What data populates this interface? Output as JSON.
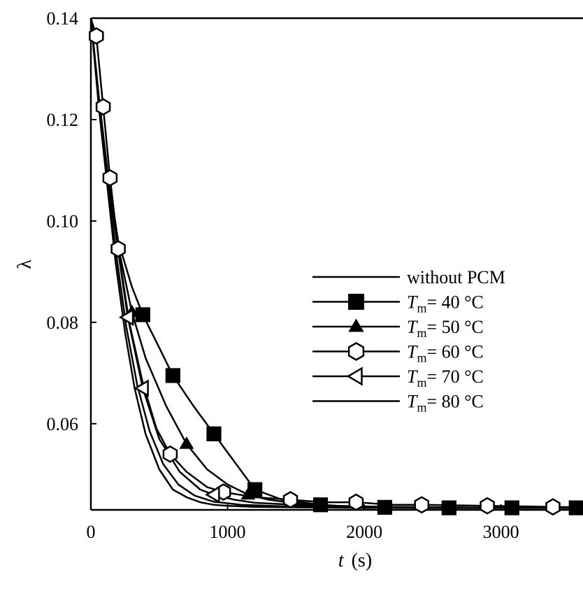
{
  "chart_data": {
    "type": "line",
    "xlabel_var": "t",
    "xlabel_unit": "(s)",
    "ylabel": "λ",
    "xlim": [
      0,
      3600
    ],
    "ylim": [
      0.043,
      0.14
    ],
    "x_ticks": [
      0,
      1000,
      2000,
      3000
    ],
    "x_tick_labels": [
      "0",
      "1000",
      "2000",
      "3000"
    ],
    "y_ticks": [
      0.06,
      0.08,
      0.1,
      0.12,
      0.14
    ],
    "y_tick_labels": [
      "0.06",
      "0.08",
      "0.10",
      "0.12",
      "0.14"
    ],
    "grid": false,
    "legend_position": "center-right",
    "series": [
      {
        "name": "without PCM",
        "marker": "none",
        "x": [
          0,
          60,
          120,
          180,
          250,
          320,
          400,
          500,
          600,
          700,
          800,
          900,
          1000,
          1200,
          1500,
          2000,
          2500,
          3000,
          3600
        ],
        "y": [
          0.14,
          0.122,
          0.107,
          0.092,
          0.078,
          0.067,
          0.058,
          0.051,
          0.047,
          0.0455,
          0.0445,
          0.044,
          0.0438,
          0.0436,
          0.0435,
          0.0434,
          0.0434,
          0.0434,
          0.0434
        ]
      },
      {
        "name": "Tm= 40 °C",
        "name_var": "T",
        "name_sub": "m",
        "name_value": "= 40 °C",
        "marker": "square",
        "marker_x": [
          380,
          600,
          900,
          1200,
          1680,
          2150,
          2620,
          3080,
          3550
        ],
        "x": [
          0,
          60,
          120,
          200,
          300,
          380,
          500,
          600,
          750,
          900,
          1050,
          1200,
          1400,
          1680,
          2000,
          2150,
          2620,
          3080,
          3600
        ],
        "y": [
          0.14,
          0.124,
          0.11,
          0.096,
          0.087,
          0.0815,
          0.075,
          0.0695,
          0.0635,
          0.058,
          0.0525,
          0.047,
          0.045,
          0.044,
          0.0435,
          0.0435,
          0.0434,
          0.0434,
          0.0434
        ]
      },
      {
        "name": "Tm= 50 °C",
        "name_var": "T",
        "name_sub": "m",
        "name_value": "= 50 °C",
        "marker": "triangle-up",
        "marker_x": [
          300,
          700,
          1150
        ],
        "x": [
          0,
          60,
          120,
          200,
          300,
          400,
          550,
          700,
          850,
          1000,
          1150,
          1300,
          1500,
          1800,
          2200,
          2600,
          3000,
          3600
        ],
        "y": [
          0.14,
          0.124,
          0.11,
          0.095,
          0.082,
          0.073,
          0.0635,
          0.056,
          0.051,
          0.048,
          0.046,
          0.045,
          0.0443,
          0.0438,
          0.0436,
          0.0435,
          0.0434,
          0.0434
        ]
      },
      {
        "name": "Tm= 60 °C",
        "name_var": "T",
        "name_sub": "m",
        "name_value": "= 60 °C",
        "marker": "hexagon",
        "marker_x": [
          40,
          90,
          140,
          200,
          580,
          970,
          1460,
          1940,
          2420,
          2900,
          3380
        ],
        "x": [
          0,
          40,
          90,
          140,
          200,
          280,
          380,
          480,
          580,
          700,
          850,
          970,
          1200,
          1460,
          1700,
          1940,
          2200,
          2420,
          2900,
          3380,
          3600
        ],
        "y": [
          0.14,
          0.1365,
          0.1225,
          0.1085,
          0.0945,
          0.08,
          0.068,
          0.059,
          0.054,
          0.0505,
          0.0475,
          0.0465,
          0.0455,
          0.045,
          0.0445,
          0.0445,
          0.044,
          0.044,
          0.0438,
          0.0436,
          0.0435
        ]
      },
      {
        "name": "Tm= 70 °C",
        "name_var": "T",
        "name_sub": "m",
        "name_value": "= 70 °C",
        "marker": "triangle-left",
        "marker_x": [
          270,
          380,
          900
        ],
        "x": [
          0,
          60,
          120,
          200,
          270,
          380,
          500,
          650,
          800,
          900,
          1050,
          1200,
          1500,
          1800,
          2200,
          2600,
          3000,
          3600
        ],
        "y": [
          0.14,
          0.123,
          0.109,
          0.094,
          0.081,
          0.067,
          0.057,
          0.0505,
          0.047,
          0.046,
          0.045,
          0.0444,
          0.044,
          0.0437,
          0.0436,
          0.0435,
          0.0434,
          0.0434
        ]
      },
      {
        "name": "Tm= 80 °C",
        "name_var": "T",
        "name_sub": "m",
        "name_value": "= 80 °C",
        "marker": "none",
        "x": [
          0,
          60,
          120,
          190,
          260,
          340,
          430,
          530,
          640,
          760,
          900,
          1100,
          1400,
          1800,
          2400,
          3000,
          3600
        ],
        "y": [
          0.14,
          0.1225,
          0.1075,
          0.0925,
          0.079,
          0.0675,
          0.0585,
          0.052,
          0.048,
          0.0458,
          0.0446,
          0.044,
          0.0437,
          0.0435,
          0.0434,
          0.0434,
          0.0434
        ]
      }
    ]
  }
}
